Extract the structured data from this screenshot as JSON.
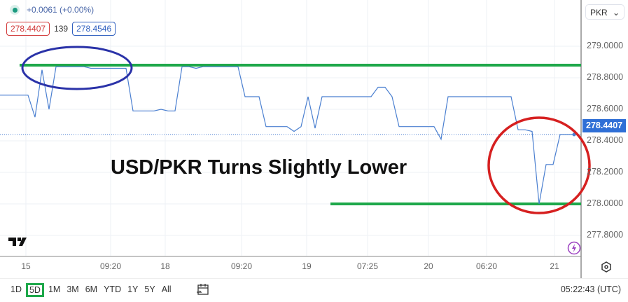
{
  "legend": {
    "change": "+0.0061 (+0.00%)",
    "bid": "278.4407",
    "spread": "139",
    "ask": "278.4546"
  },
  "currency_select": "PKR",
  "current_price": "278.4407",
  "time_labels": [
    "15",
    "09:20",
    "18",
    "09:20",
    "19",
    "07:25",
    "20",
    "06:20",
    "21"
  ],
  "ranges": [
    "1D",
    "5D",
    "1M",
    "3M",
    "6M",
    "YTD",
    "1Y",
    "5Y",
    "All"
  ],
  "selected_range": "5D",
  "clock": "05:22:43 (UTC)",
  "colors": {
    "line": "#4a7fd0",
    "support_resistance": "#1ea84a",
    "ellipse": "#2a32a8",
    "circle": "#d62020"
  },
  "chart_data": {
    "type": "line",
    "title": "USD/PKR Turns Slightly Lower",
    "ylim": [
      277.7,
      279.15
    ],
    "yticks": [
      "279.0000",
      "278.8000",
      "278.6000",
      "278.4000",
      "278.2000",
      "278.0000",
      "277.8000"
    ],
    "grid": true,
    "values": [
      278.69,
      278.69,
      278.69,
      278.69,
      278.69,
      278.55,
      278.85,
      278.6,
      278.87,
      278.87,
      278.87,
      278.87,
      278.87,
      278.86,
      278.86,
      278.86,
      278.86,
      278.86,
      278.86,
      278.59,
      278.59,
      278.59,
      278.59,
      278.6,
      278.59,
      278.59,
      278.87,
      278.87,
      278.86,
      278.87,
      278.87,
      278.87,
      278.87,
      278.87,
      278.87,
      278.68,
      278.68,
      278.68,
      278.49,
      278.49,
      278.49,
      278.49,
      278.46,
      278.49,
      278.68,
      278.48,
      278.68,
      278.68,
      278.68,
      278.68,
      278.68,
      278.68,
      278.68,
      278.68,
      278.74,
      278.74,
      278.68,
      278.49,
      278.49,
      278.49,
      278.49,
      278.49,
      278.49,
      278.41,
      278.68,
      278.68,
      278.68,
      278.68,
      278.68,
      278.68,
      278.68,
      278.68,
      278.68,
      278.68,
      278.47,
      278.47,
      278.46,
      278.0,
      278.25,
      278.25,
      278.44,
      278.44,
      278.44
    ],
    "resistance": 278.88,
    "support": 278.0
  }
}
